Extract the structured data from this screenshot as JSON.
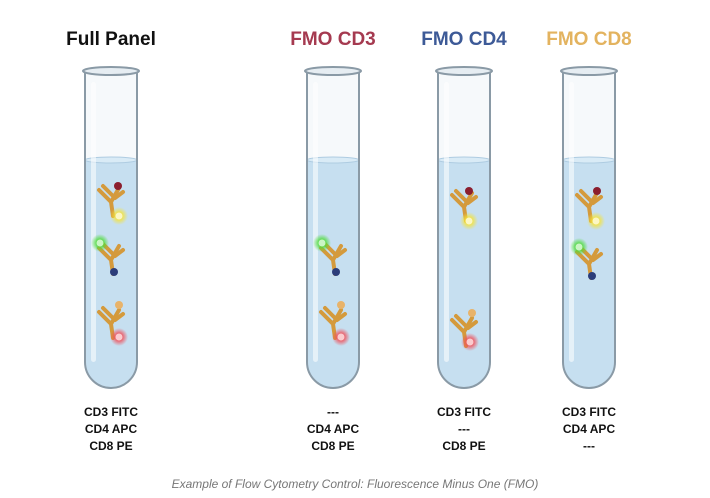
{
  "tubes": [
    {
      "title": "Full Panel",
      "color": "#111111",
      "lines": [
        "CD3 FITC",
        "CD4 APC",
        "CD8 PE"
      ]
    },
    {
      "title": "FMO CD3",
      "color": "#a53a50",
      "lines": [
        "---",
        "CD4 APC",
        "CD8 PE"
      ]
    },
    {
      "title": "FMO CD4",
      "color": "#3d5a97",
      "lines": [
        "CD3 FITC",
        "---",
        "CD8 PE"
      ]
    },
    {
      "title": "FMO CD8",
      "color": "#e3b35f",
      "lines": [
        "CD3 FITC",
        "CD4 APC",
        "---"
      ]
    }
  ],
  "caption": "Example of Flow Cytometry Control: Fluorescence Minus One (FMO)"
}
